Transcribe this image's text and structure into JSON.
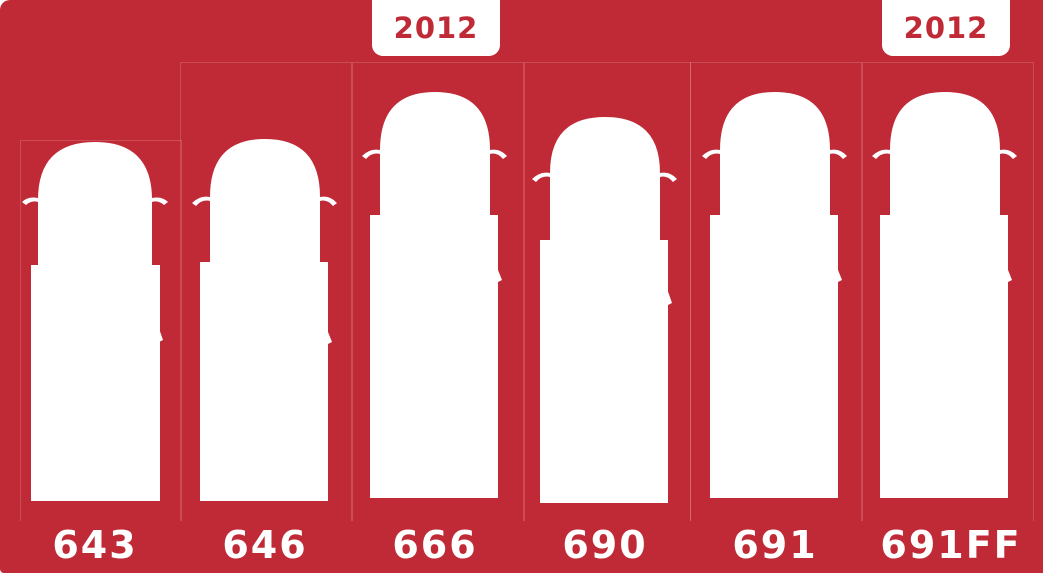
{
  "colors": {
    "background": "#c02a37",
    "foreground": "#ffffff"
  },
  "year_tabs": [
    {
      "label": "2012",
      "model": "666"
    },
    {
      "label": "2012",
      "model": "691FF"
    }
  ],
  "models": [
    {
      "label": "643"
    },
    {
      "label": "646"
    },
    {
      "label": "666"
    },
    {
      "label": "690"
    },
    {
      "label": "691"
    },
    {
      "label": "691FF"
    }
  ]
}
